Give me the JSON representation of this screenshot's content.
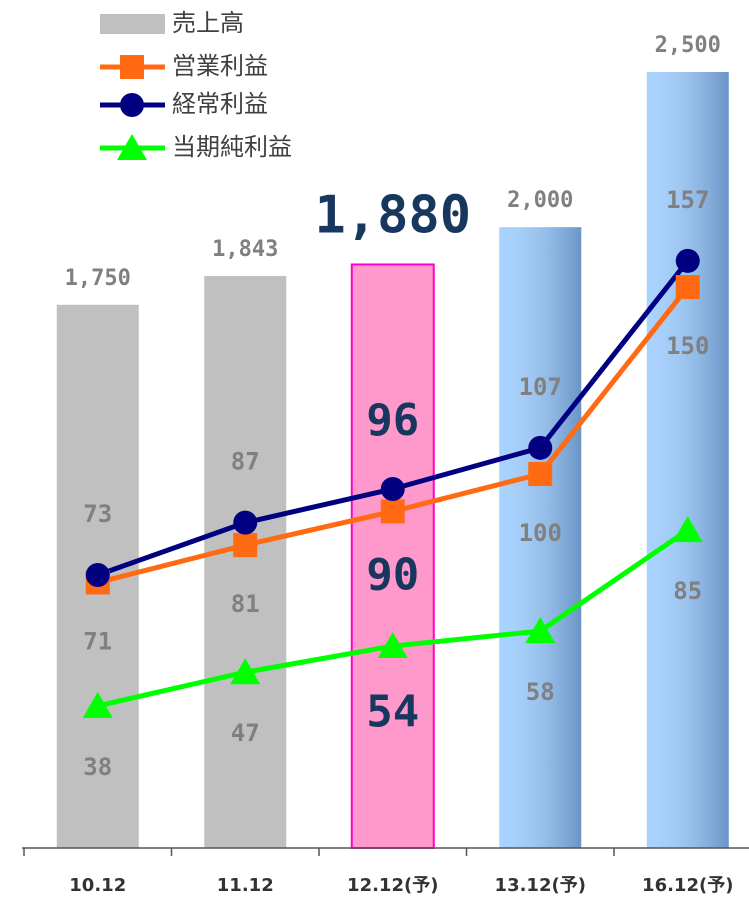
{
  "chart_data": {
    "type": "bar",
    "categories": [
      "10.12",
      "11.12",
      "12.12(予)",
      "13.12(予)",
      "16.12(予)"
    ],
    "series": [
      {
        "name": "売上高",
        "type": "bar",
        "colors": [
          "#c0c0c0",
          "#c0c0c0",
          "#ff99cc",
          "#99ccff",
          "#99ccff"
        ],
        "values": [
          1750,
          1843,
          1880,
          2000,
          2500
        ],
        "value_labels": [
          "1,750",
          "1,843",
          "1,880",
          "2,000",
          "2,500"
        ]
      },
      {
        "name": "営業利益",
        "type": "line",
        "marker": "square",
        "color": "#ff6a13",
        "axis": "y2",
        "values": [
          71,
          81,
          90,
          100,
          150
        ]
      },
      {
        "name": "経常利益",
        "type": "line",
        "marker": "circle",
        "color": "#000080",
        "axis": "y2",
        "values": [
          73,
          87,
          96,
          107,
          157
        ]
      },
      {
        "name": "当期純利益",
        "type": "line",
        "marker": "triangle",
        "color": "#00ff00",
        "axis": "y2",
        "values": [
          38,
          47,
          54,
          58,
          85
        ]
      }
    ],
    "ylim": [
      0,
      2500
    ],
    "y2lim": [
      0,
      207.5
    ]
  }
}
